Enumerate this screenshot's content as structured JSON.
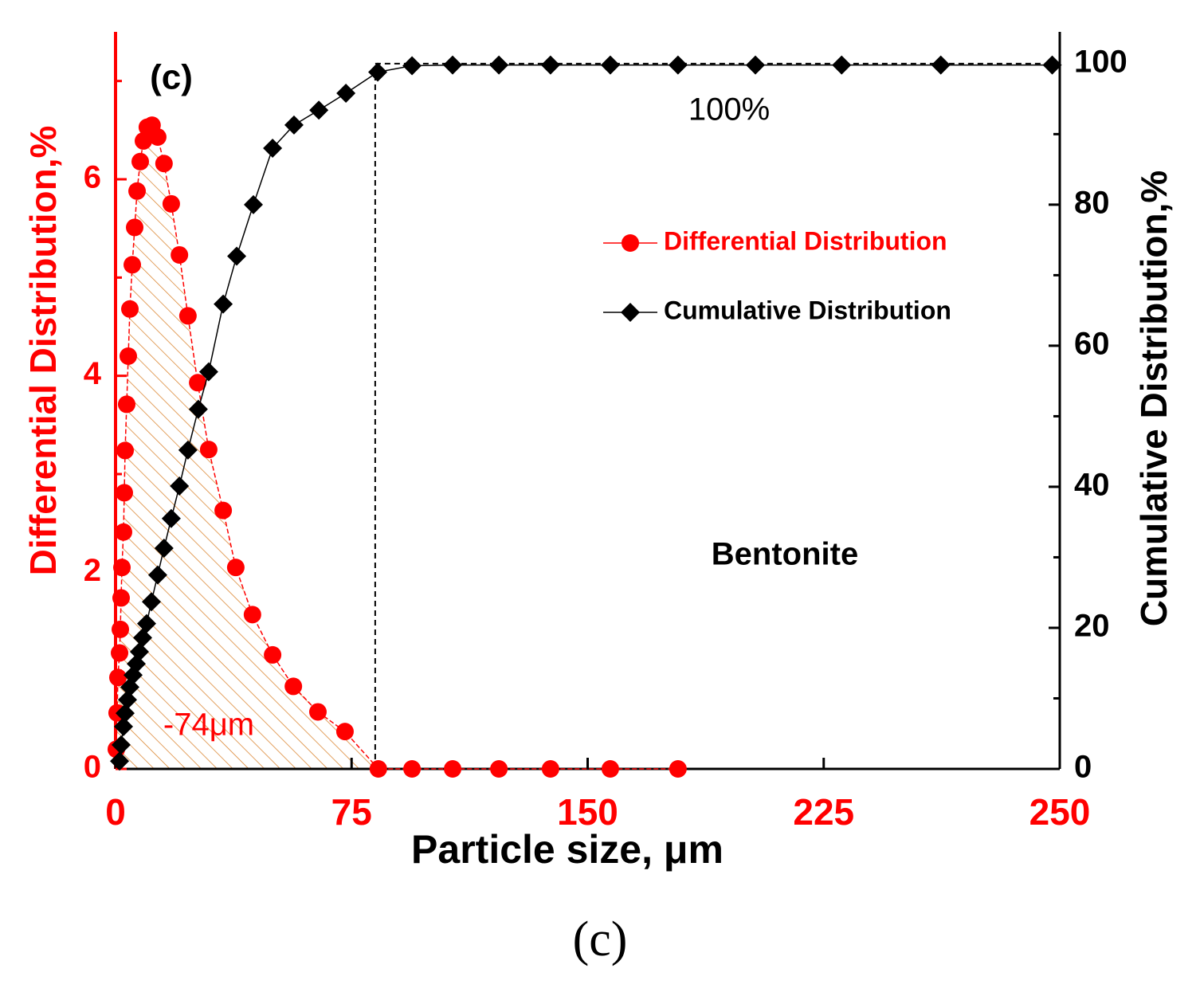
{
  "chart_data": {
    "type": "scatter",
    "panel_label": "(c)",
    "caption": "(c)",
    "xlabel": "Particle size, μm",
    "ylabel": "Differential Distribution,%",
    "y2label": "Cumulative Distribution,%",
    "annotations": {
      "top": "100%",
      "material": "Bentonite",
      "cutoff": "-74μm"
    },
    "cutoff": {
      "x": 82.5,
      "y2": 100
    },
    "xlim": [
      0,
      250
    ],
    "xticks": [
      0,
      75,
      150,
      225,
      250
    ],
    "ylim": [
      0,
      7.5
    ],
    "yticks": [
      0,
      2,
      4,
      6
    ],
    "yticks_minor": [
      1,
      3,
      5,
      7
    ],
    "y2lim": [
      0,
      104.5
    ],
    "y2ticks": [
      0,
      20,
      40,
      60,
      80,
      100
    ],
    "y2ticks_minor": [
      10,
      30,
      50,
      70,
      90
    ],
    "series": [
      {
        "name": "Differential Distribution",
        "color": "#ff0000",
        "marker": "circle",
        "x": [
          0.25,
          0.5,
          0.76,
          1.27,
          1.52,
          1.77,
          2.03,
          2.53,
          2.78,
          3.04,
          3.54,
          4.05,
          4.56,
          5.32,
          6.08,
          6.84,
          7.85,
          8.86,
          10.1,
          11.6,
          13.4,
          15.4,
          17.7,
          20.3,
          23.0,
          26.1,
          29.6,
          34.2,
          38.2,
          43.5,
          49.9,
          56.5,
          64.3,
          72.9,
          83.5,
          94.2,
          107.1,
          121.8,
          138.2,
          157.2,
          178.7
        ],
        "values": [
          0.2,
          0.57,
          0.93,
          1.18,
          1.42,
          1.74,
          2.05,
          2.41,
          2.81,
          3.24,
          3.71,
          4.2,
          4.68,
          5.13,
          5.51,
          5.88,
          6.18,
          6.39,
          6.53,
          6.55,
          6.43,
          6.16,
          5.75,
          5.23,
          4.61,
          3.93,
          3.25,
          2.63,
          2.05,
          1.57,
          1.16,
          0.84,
          0.58,
          0.38,
          0,
          0,
          0,
          0,
          0,
          0,
          0
        ]
      },
      {
        "name": "Cumulative Distribution",
        "color": "#000000",
        "marker": "diamond",
        "axis": "y2",
        "x": [
          1.27,
          1.77,
          2.53,
          3.04,
          3.8,
          4.56,
          5.57,
          6.58,
          7.59,
          8.61,
          9.87,
          11.4,
          13.4,
          15.4,
          17.7,
          20.3,
          23.0,
          26.3,
          29.6,
          34.2,
          38.5,
          43.8,
          49.9,
          56.7,
          64.6,
          73.2,
          83.3,
          94.2,
          107.1,
          121.8,
          138.2,
          157.2,
          178.7,
          203.3,
          226.9,
          237.4,
          249.2
        ],
        "values": [
          1.1,
          3.4,
          6,
          7.9,
          9.8,
          11.6,
          13.3,
          14.9,
          16.6,
          18.6,
          20.6,
          23.7,
          27.5,
          31.3,
          35.5,
          40.1,
          45.2,
          51,
          56.3,
          65.9,
          72.7,
          80,
          88,
          91.3,
          93.4,
          95.8,
          98.8,
          99.7,
          99.8,
          99.8,
          99.8,
          99.8,
          99.8,
          99.8,
          99.8,
          99.8,
          99.8
        ]
      }
    ]
  }
}
